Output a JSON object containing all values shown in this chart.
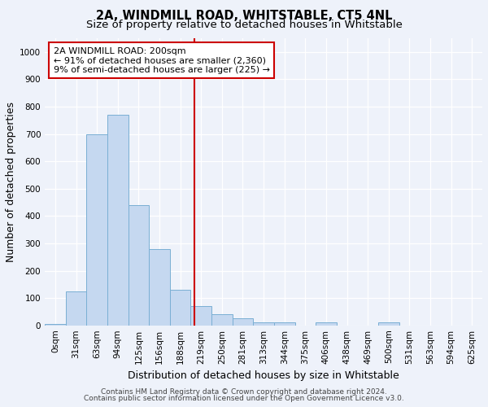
{
  "title": "2A, WINDMILL ROAD, WHITSTABLE, CT5 4NL",
  "subtitle": "Size of property relative to detached houses in Whitstable",
  "xlabel": "Distribution of detached houses by size in Whitstable",
  "ylabel": "Number of detached properties",
  "bin_labels": [
    "0sqm",
    "31sqm",
    "63sqm",
    "94sqm",
    "125sqm",
    "156sqm",
    "188sqm",
    "219sqm",
    "250sqm",
    "281sqm",
    "313sqm",
    "344sqm",
    "375sqm",
    "406sqm",
    "438sqm",
    "469sqm",
    "500sqm",
    "531sqm",
    "563sqm",
    "594sqm",
    "625sqm"
  ],
  "bar_values": [
    5,
    125,
    700,
    770,
    440,
    280,
    130,
    70,
    40,
    25,
    10,
    10,
    0,
    10,
    0,
    0,
    10,
    0,
    0,
    0,
    0
  ],
  "bar_color": "#c5d8f0",
  "bar_edge_color": "#7aafd4",
  "red_line_x": 6.68,
  "red_line_label": "2A WINDMILL ROAD: 200sqm",
  "annotation_line1": "← 91% of detached houses are smaller (2,360)",
  "annotation_line2": "9% of semi-detached houses are larger (225) →",
  "ylim": [
    0,
    1050
  ],
  "yticks": [
    0,
    100,
    200,
    300,
    400,
    500,
    600,
    700,
    800,
    900,
    1000
  ],
  "footer1": "Contains HM Land Registry data © Crown copyright and database right 2024.",
  "footer2": "Contains public sector information licensed under the Open Government Licence v3.0.",
  "background_color": "#eef2fa",
  "grid_color": "#ffffff",
  "annotation_box_facecolor": "#ffffff",
  "annotation_box_edgecolor": "#cc0000",
  "title_fontsize": 10.5,
  "subtitle_fontsize": 9.5,
  "axis_label_fontsize": 9,
  "tick_fontsize": 7.5,
  "annotation_fontsize": 8,
  "footer_fontsize": 6.5
}
